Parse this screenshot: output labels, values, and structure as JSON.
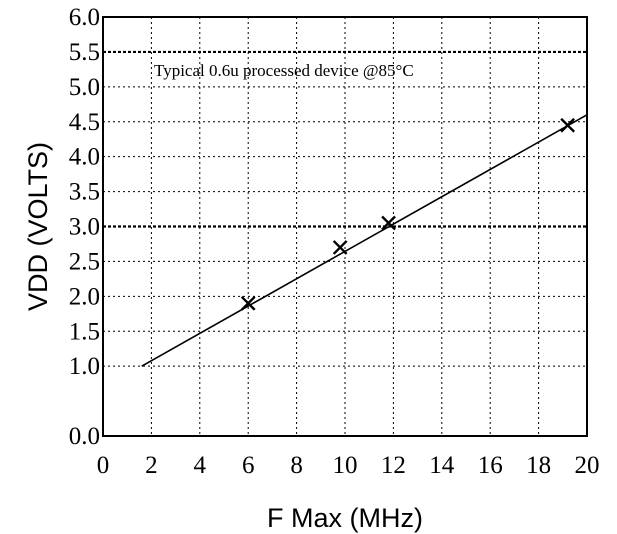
{
  "chart_data": {
    "type": "scatter",
    "xlabel": "F Max (MHz)",
    "ylabel": "VDD (VOLTS)",
    "xlim": [
      0,
      20
    ],
    "ylim": [
      0,
      6
    ],
    "x_ticks": [
      0,
      2,
      4,
      6,
      8,
      10,
      12,
      14,
      16,
      18,
      20
    ],
    "x_tick_labels": [
      "0",
      "2",
      "4",
      "6",
      "8",
      "10",
      "12",
      "14",
      "16",
      "18",
      "20"
    ],
    "y_ticks": [
      0,
      1,
      1.5,
      2,
      2.5,
      3,
      3.5,
      4,
      4.5,
      5,
      5.5,
      6
    ],
    "y_tick_labels": [
      "0.0",
      "1.0",
      "1.5",
      "2.0",
      "2.5",
      "3.0",
      "3.5",
      "4.0",
      "4.5",
      "5.0",
      "5.5",
      "6.0"
    ],
    "grid": true,
    "emphasized_gridlines_y": [
      3.0,
      5.5
    ],
    "annotation": "Typical 0.6u processed device @85°C",
    "points": [
      {
        "x": 6.0,
        "y": 1.9
      },
      {
        "x": 9.8,
        "y": 2.7
      },
      {
        "x": 11.8,
        "y": 3.05
      },
      {
        "x": 19.2,
        "y": 4.45
      }
    ],
    "fit_line": [
      {
        "x": 1.6,
        "y": 1.0
      },
      {
        "x": 20.0,
        "y": 4.6
      }
    ]
  }
}
